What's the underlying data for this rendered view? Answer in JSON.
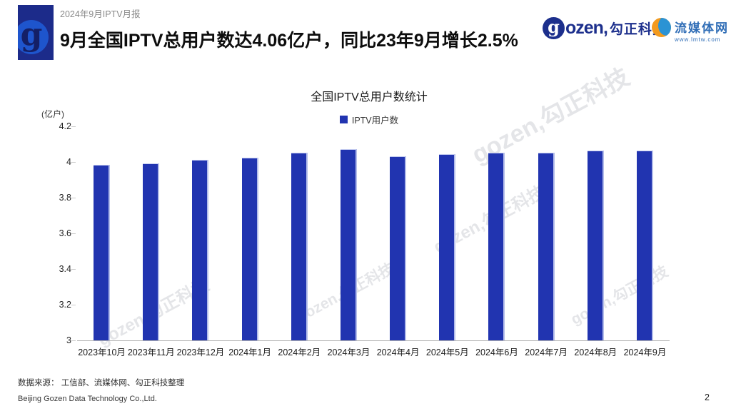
{
  "header": {
    "report_label": "2024年9月IPTV月报",
    "title": "9月全国IPTV总用户数达4.06亿户，同比23年9月增长2.5%",
    "logo_letter": "g"
  },
  "brand": {
    "gozen_mark_letter": "g",
    "gozen_word": "ozen,",
    "gozen_cn": "勾正科技",
    "gozen_color": "#1c2f8c",
    "lmtw_name": "流媒体网",
    "lmtw_url": "www.lmtw.com",
    "lmtw_blue": "#2f6db6",
    "lmtw_orange": "#f29a1e"
  },
  "watermark": "gozen,勾正科技",
  "chart_data": {
    "type": "bar",
    "title": "全国IPTV总用户数统计",
    "unit_label": "(亿户)",
    "legend": [
      "IPTV用户数"
    ],
    "categories": [
      "2023年10月",
      "2023年11月",
      "2023年12月",
      "2024年1月",
      "2024年2月",
      "2024年3月",
      "2024年4月",
      "2024年5月",
      "2024年6月",
      "2024年7月",
      "2024年8月",
      "2024年9月"
    ],
    "values": [
      3.98,
      3.99,
      4.01,
      4.02,
      4.05,
      4.07,
      4.03,
      4.04,
      4.05,
      4.05,
      4.06,
      4.06
    ],
    "ylim": [
      3,
      4.2
    ],
    "yticks": [
      4.2,
      4,
      3.8,
      3.6,
      3.4,
      3.2,
      3
    ],
    "ytick_labels": [
      "4.2",
      "4",
      "3.8",
      "3.6",
      "3.4",
      "3.2",
      "3"
    ],
    "bar_color": "#2134b0",
    "grid": false,
    "legend_position": "top-center"
  },
  "footer": {
    "source": "数据来源： 工信部、流媒体网、勾正科技整理",
    "company": "Beijing Gozen Data Technology Co.,Ltd.",
    "page": "2"
  }
}
